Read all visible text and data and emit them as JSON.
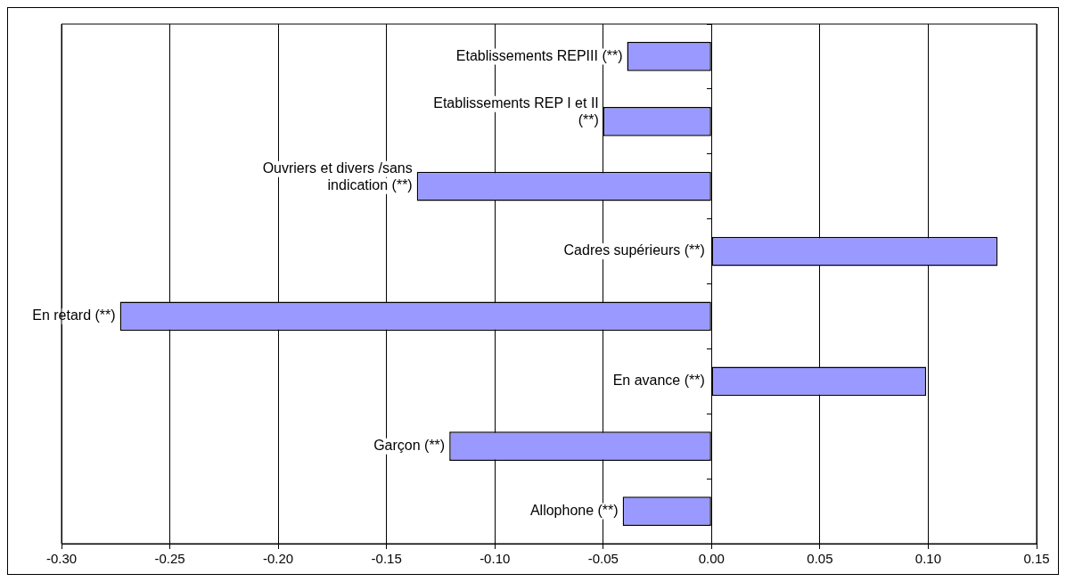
{
  "chart_data": {
    "type": "bar",
    "orientation": "horizontal",
    "categories": [
      "Etablissements REPIII (**)",
      "Etablissements REP I et II (**)",
      "Ouvriers et divers /sans indication (**)",
      "Cadres supérieurs (**)",
      "En retard (**)",
      "En avance (**)",
      "Garçon (**)",
      "Allophone (**)"
    ],
    "values": [
      -0.039,
      -0.05,
      -0.136,
      0.132,
      -0.273,
      0.099,
      -0.121,
      -0.041
    ],
    "color": "#9999ff",
    "xlim": [
      -0.3,
      0.15
    ],
    "xticks": [
      {
        "value": -0.3,
        "label": "-0.30"
      },
      {
        "value": -0.25,
        "label": "-0.25"
      },
      {
        "value": -0.2,
        "label": "-0.20"
      },
      {
        "value": -0.15,
        "label": "-0.15"
      },
      {
        "value": -0.1,
        "label": "-0.10"
      },
      {
        "value": -0.05,
        "label": "-0.05"
      },
      {
        "value": 0,
        "label": "0.00"
      },
      {
        "value": 0.05,
        "label": "0.05"
      },
      {
        "value": 0.1,
        "label": "0.10"
      },
      {
        "value": 0.15,
        "label": "0.15"
      }
    ],
    "grid": "x",
    "legend": false,
    "tick_labels": "x"
  }
}
